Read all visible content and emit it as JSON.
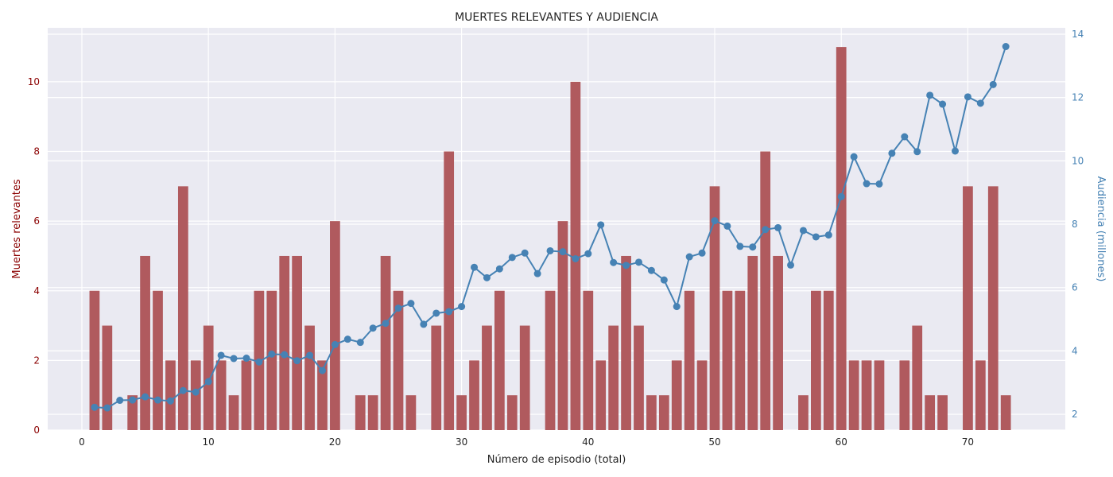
{
  "chart_data": {
    "type": "bar+line",
    "title": "MUERTES RELEVANTES Y AUDIENCIA",
    "xlabel": "Número de episodio (total)",
    "ylabel_left": "Muertes relevantes",
    "ylabel_right": "Audiencia (millones)",
    "xlim": [
      -2.7,
      77.7
    ],
    "ylim_left": [
      0,
      11.55
    ],
    "ylim_right": [
      1.5,
      14.2
    ],
    "xticks": [
      "0",
      "10",
      "20",
      "30",
      "40",
      "50",
      "60",
      "70"
    ],
    "yticks_left": [
      "0",
      "2",
      "4",
      "6",
      "8",
      "10"
    ],
    "yticks_right": [
      "2",
      "4",
      "6",
      "8",
      "10",
      "12",
      "14"
    ],
    "grid": true,
    "colors": {
      "bars": "#b05a5e",
      "line": "#4682b4",
      "left_axis": "#8b0000",
      "right_axis": "#4682b4",
      "plot_bg": "#eaeaf2",
      "grid": "#ffffff"
    },
    "series": [
      {
        "type": "bar",
        "axis": "left",
        "x": [
          1,
          2,
          3,
          4,
          5,
          6,
          7,
          8,
          9,
          10,
          11,
          12,
          13,
          14,
          15,
          16,
          17,
          18,
          19,
          20,
          21,
          22,
          23,
          24,
          25,
          26,
          27,
          28,
          29,
          30,
          31,
          32,
          33,
          34,
          35,
          36,
          37,
          38,
          39,
          40,
          41,
          42,
          43,
          44,
          45,
          46,
          47,
          48,
          49,
          50,
          51,
          52,
          53,
          54,
          55,
          56,
          57,
          58,
          59,
          60,
          61,
          62,
          63,
          64,
          65,
          66,
          67,
          68,
          69,
          70,
          71,
          72,
          73
        ],
        "values": [
          4,
          3,
          0,
          1,
          5,
          4,
          2,
          7,
          2,
          3,
          2,
          1,
          2,
          4,
          4,
          5,
          5,
          3,
          2,
          6,
          0,
          1,
          1,
          5,
          4,
          1,
          0,
          3,
          8,
          1,
          2,
          3,
          4,
          1,
          3,
          0,
          4,
          6,
          10,
          4,
          2,
          3,
          5,
          3,
          1,
          1,
          2,
          4,
          2,
          7,
          4,
          4,
          5,
          8,
          5,
          0,
          1,
          4,
          4,
          11,
          2,
          2,
          2,
          0,
          2,
          3,
          1,
          1,
          0,
          7,
          2,
          7,
          1
        ]
      },
      {
        "type": "line",
        "axis": "right",
        "x": [
          1,
          2,
          3,
          4,
          5,
          6,
          7,
          8,
          9,
          10,
          11,
          12,
          13,
          14,
          15,
          16,
          17,
          18,
          19,
          20,
          21,
          22,
          23,
          24,
          25,
          26,
          27,
          28,
          29,
          30,
          31,
          32,
          33,
          34,
          35,
          36,
          37,
          38,
          39,
          40,
          41,
          42,
          43,
          44,
          45,
          46,
          47,
          48,
          49,
          50,
          51,
          52,
          53,
          54,
          55,
          56,
          57,
          58,
          59,
          60,
          61,
          62,
          63,
          64,
          65,
          66,
          67,
          68,
          69,
          70,
          71,
          72,
          73
        ],
        "values": [
          2.22,
          2.2,
          2.44,
          2.45,
          2.55,
          2.45,
          2.42,
          2.75,
          2.7,
          3.03,
          3.86,
          3.76,
          3.77,
          3.65,
          3.9,
          3.88,
          3.69,
          3.86,
          3.38,
          4.2,
          4.37,
          4.27,
          4.72,
          4.87,
          5.35,
          5.5,
          4.84,
          5.19,
          5.24,
          5.4,
          6.64,
          6.31,
          6.59,
          6.95,
          7.09,
          6.44,
          7.16,
          7.13,
          6.91,
          7.07,
          7.98,
          6.79,
          6.7,
          6.8,
          6.54,
          6.24,
          5.4,
          6.97,
          7.09,
          8.11,
          7.94,
          7.3,
          7.28,
          7.83,
          7.89,
          6.71,
          7.8,
          7.6,
          7.66,
          8.87,
          10.13,
          9.28,
          9.27,
          10.24,
          10.76,
          10.29,
          12.07,
          11.79,
          10.31,
          12.02,
          11.82,
          12.41,
          13.61
        ]
      }
    ]
  }
}
